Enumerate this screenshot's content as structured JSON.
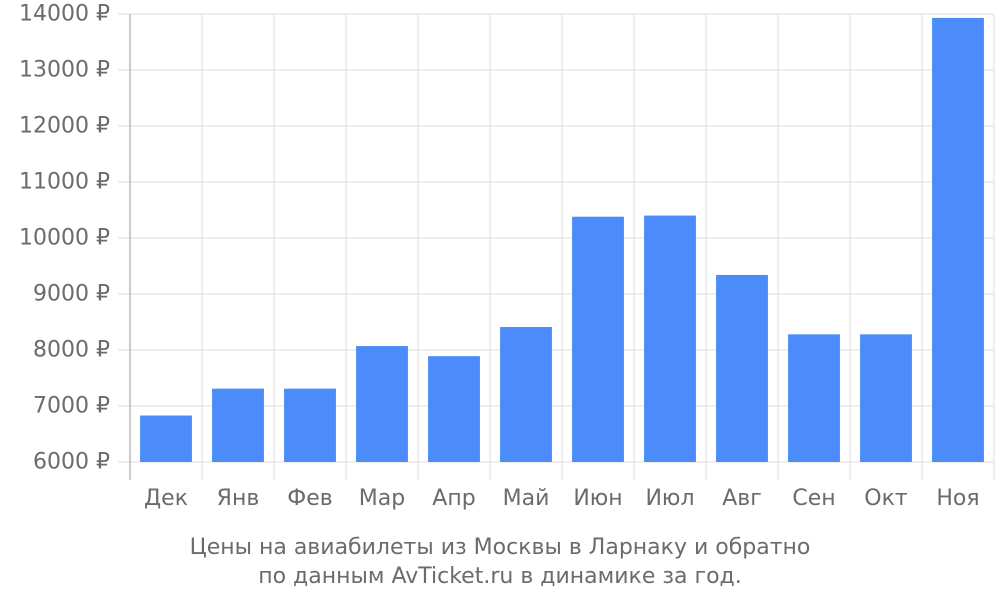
{
  "chart_data": {
    "type": "bar",
    "title": "",
    "xlabel": "",
    "ylabel": "",
    "categories": [
      "Дек",
      "Янв",
      "Фев",
      "Мар",
      "Апр",
      "Май",
      "Июн",
      "Июл",
      "Авг",
      "Сен",
      "Окт",
      "Ноя"
    ],
    "values": [
      6830,
      7310,
      7310,
      8070,
      7890,
      8410,
      10380,
      10400,
      9340,
      8280,
      8280,
      13930
    ],
    "ylim": [
      6000,
      14000
    ],
    "yticks": [
      6000,
      7000,
      8000,
      9000,
      10000,
      11000,
      12000,
      13000,
      14000
    ],
    "ytick_suffix": " ₽",
    "grid": true,
    "colors": {
      "bar": "#4b8bfa",
      "grid": "#dddddd",
      "text": "#6b6b6b"
    }
  },
  "caption": {
    "line1": "Цены на авиабилеты из Москвы в Ларнаку и обратно",
    "line2": "по данным AvTicket.ru в динамике за год."
  }
}
